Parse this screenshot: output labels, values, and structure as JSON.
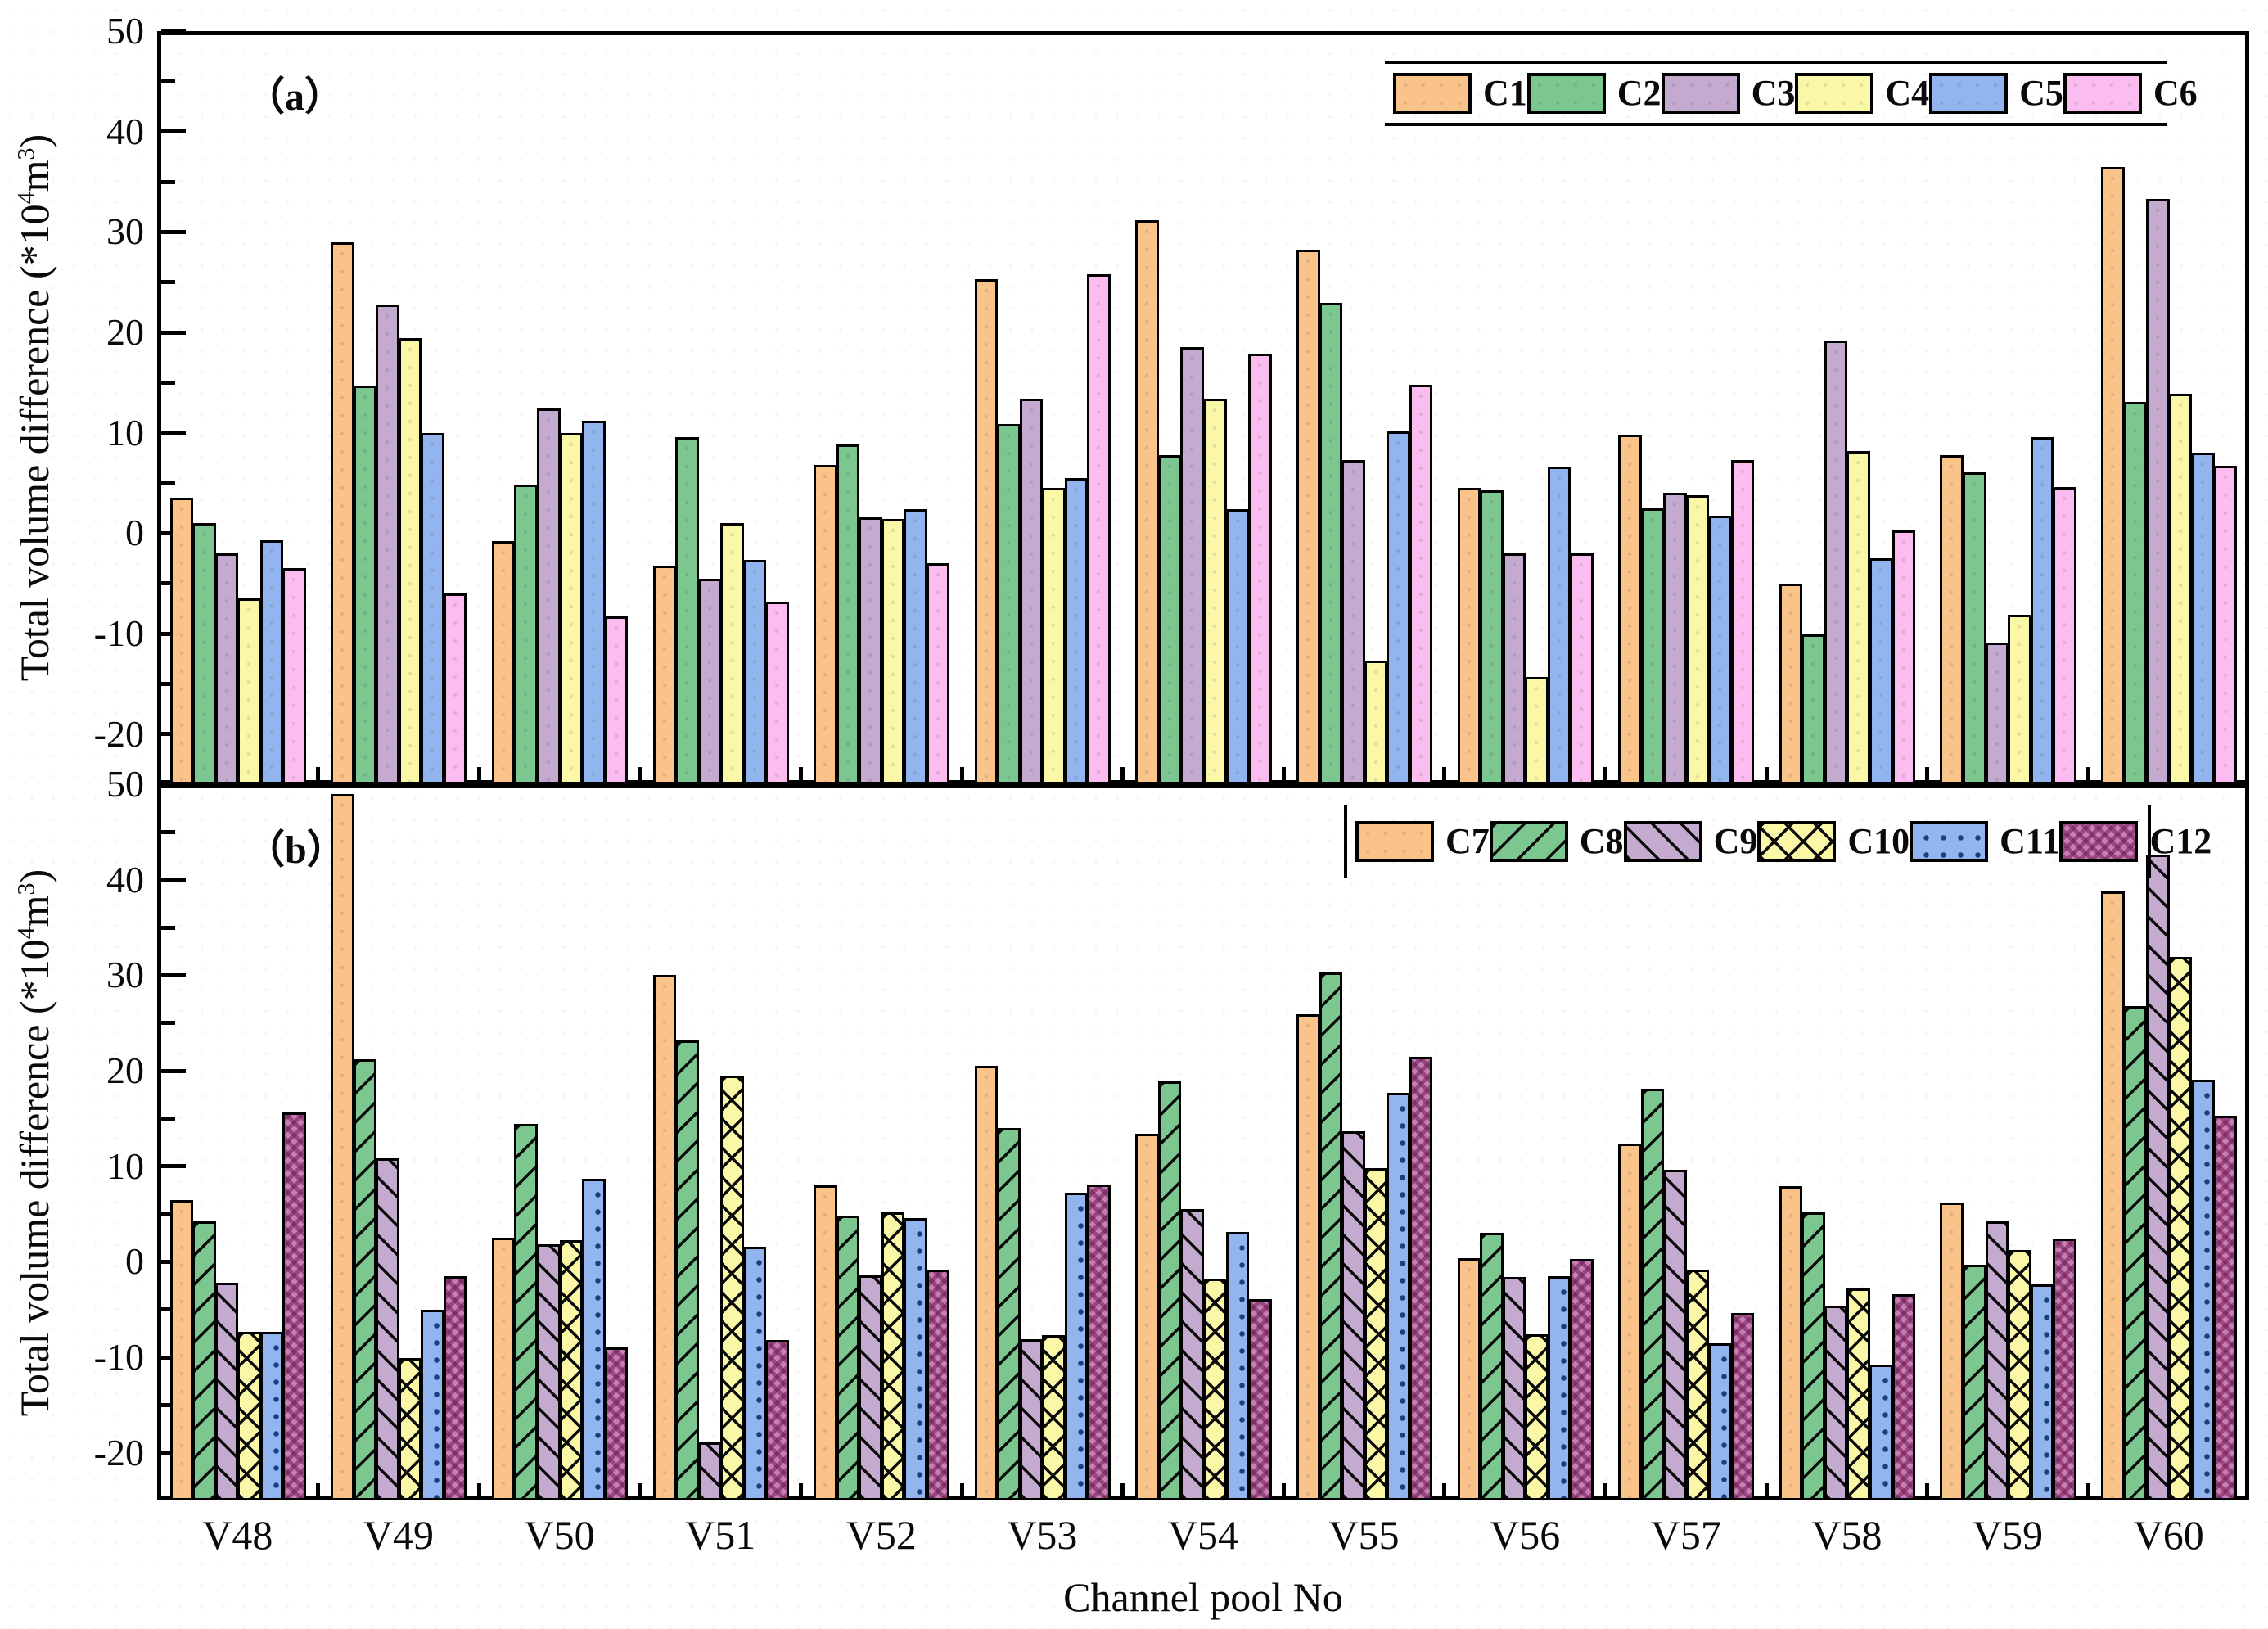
{
  "figure": {
    "xlabel": "Channel pool No",
    "background": "#ffffff",
    "text_color": "#0a0a0a"
  },
  "chart_data": [
    {
      "type": "bar",
      "panel_label": "（a）",
      "ylabel_parts": [
        "Total volume difference (*10",
        "^4",
        "m",
        "^3",
        ")"
      ],
      "categories": [
        "V48",
        "V49",
        "V50",
        "V51",
        "V52",
        "V53",
        "V54",
        "V55",
        "V56",
        "V57",
        "V58",
        "V59",
        "V60"
      ],
      "ylim": [
        -25,
        50
      ],
      "yticks_major": [
        50,
        40,
        30,
        20,
        10,
        0,
        -10,
        -20
      ],
      "yticks_minor": [
        45,
        35,
        25,
        15,
        5,
        -5,
        -15
      ],
      "grid": "off",
      "legend_position": "top-right-inside",
      "bar_baseline": "plot-bottom",
      "series": [
        {
          "name": "C1",
          "color": "#FAC38A",
          "pattern": "speckle",
          "values": [
            3.5,
            29.0,
            -0.8,
            -3.2,
            6.8,
            25.3,
            31.2,
            28.2,
            4.5,
            9.8,
            -5.0,
            7.8,
            36.5
          ]
        },
        {
          "name": "C2",
          "color": "#7CC78F",
          "pattern": "speckle",
          "values": [
            1.0,
            14.7,
            4.8,
            9.6,
            8.8,
            10.9,
            7.8,
            22.9,
            4.3,
            2.5,
            -10.1,
            6.1,
            13.1
          ]
        },
        {
          "name": "C3",
          "color": "#C4AACF",
          "pattern": "speckle",
          "values": [
            -2.0,
            22.8,
            12.4,
            -4.5,
            1.6,
            13.4,
            18.5,
            7.3,
            -2.0,
            4.0,
            19.2,
            -10.9,
            33.3
          ]
        },
        {
          "name": "C4",
          "color": "#FAF7A6",
          "pattern": "speckle",
          "values": [
            -6.5,
            19.4,
            10.0,
            1.0,
            1.4,
            4.5,
            13.4,
            -12.7,
            -14.3,
            3.8,
            8.2,
            -8.1,
            13.9
          ]
        },
        {
          "name": "C5",
          "color": "#93B5EF",
          "pattern": "speckle",
          "values": [
            -0.7,
            10.0,
            11.2,
            -2.7,
            2.4,
            5.5,
            2.4,
            10.1,
            6.6,
            1.7,
            -2.5,
            9.6,
            8.0
          ]
        },
        {
          "name": "C6",
          "color": "#FDBCEF",
          "pattern": "speckle",
          "values": [
            -3.5,
            -6.0,
            -8.3,
            -6.8,
            -3.0,
            25.8,
            17.9,
            14.8,
            -2.0,
            7.3,
            0.3,
            4.6,
            6.7
          ]
        }
      ]
    },
    {
      "type": "bar",
      "panel_label": "（b）",
      "ylabel_parts": [
        "Total volume difference (*10",
        "^4",
        "m",
        "^3",
        ")"
      ],
      "categories": [
        "V48",
        "V49",
        "V50",
        "V51",
        "V52",
        "V53",
        "V54",
        "V55",
        "V56",
        "V57",
        "V58",
        "V59",
        "V60"
      ],
      "ylim": [
        -25,
        50
      ],
      "yticks_major": [
        50,
        40,
        30,
        20,
        10,
        0,
        -10,
        -20
      ],
      "yticks_minor": [
        45,
        35,
        25,
        15,
        5,
        -5,
        -15
      ],
      "grid": "off",
      "legend_position": "top-right-inside",
      "bar_baseline": "plot-bottom",
      "series": [
        {
          "name": "C7",
          "color": "#FAC38A",
          "pattern": "speckle",
          "values": [
            6.5,
            49.0,
            2.5,
            30.0,
            8.0,
            20.5,
            13.4,
            25.9,
            0.4,
            12.4,
            7.9,
            6.2,
            38.8
          ]
        },
        {
          "name": "C8",
          "color": "#7CC78F",
          "pattern": "hatch-fwd",
          "values": [
            4.2,
            21.2,
            14.4,
            23.2,
            4.8,
            14.0,
            18.9,
            30.3,
            3.0,
            18.1,
            5.2,
            -0.3,
            26.8
          ]
        },
        {
          "name": "C9",
          "color": "#C4AACF",
          "pattern": "hatch-back",
          "values": [
            -2.2,
            10.8,
            1.8,
            -18.9,
            -1.4,
            -8.1,
            5.5,
            13.7,
            -1.6,
            9.6,
            -4.6,
            4.2,
            42.6
          ]
        },
        {
          "name": "C10",
          "color": "#FAF7A6",
          "pattern": "cross",
          "values": [
            -7.3,
            -10.1,
            2.3,
            19.5,
            5.2,
            -7.7,
            -1.8,
            9.8,
            -7.6,
            -0.8,
            -2.8,
            1.2,
            31.9
          ]
        },
        {
          "name": "C11",
          "color": "#93B5EF",
          "pattern": "dots",
          "values": [
            -7.3,
            -5.0,
            8.7,
            1.6,
            4.6,
            7.2,
            3.1,
            17.7,
            -1.5,
            -8.5,
            -10.8,
            -2.4,
            19.1
          ]
        },
        {
          "name": "C12",
          "color": "#C77FB3",
          "pattern": "checker",
          "values": [
            15.6,
            -1.5,
            -9.0,
            -8.2,
            -0.8,
            8.1,
            -3.9,
            21.5,
            0.3,
            -5.4,
            -3.4,
            2.4,
            15.3
          ]
        }
      ]
    }
  ]
}
